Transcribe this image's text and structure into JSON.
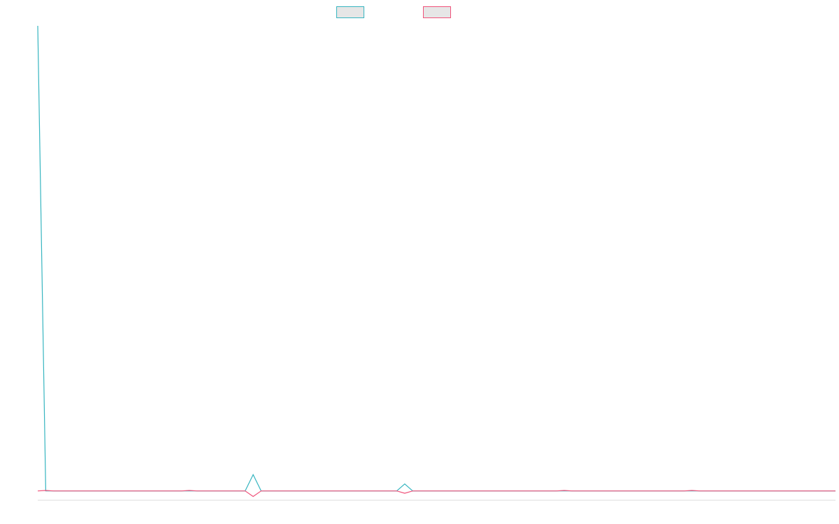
{
  "chart_data": {
    "type": "line",
    "title": "",
    "xlabel": "",
    "ylabel": "",
    "x": [
      0,
      1,
      2,
      3,
      4,
      5,
      6,
      7,
      8,
      9,
      10,
      11,
      12,
      13,
      14,
      15,
      16,
      17,
      18,
      19,
      20,
      21,
      22,
      23,
      24,
      25,
      26,
      27,
      28,
      29,
      30,
      31,
      32,
      33,
      34,
      35,
      36,
      37,
      38,
      39,
      40,
      41,
      42,
      43,
      44,
      45,
      46,
      47,
      48,
      49,
      50,
      51,
      52,
      53,
      54,
      55,
      56,
      57,
      58,
      59,
      60,
      61,
      62,
      63,
      64,
      65,
      66,
      67,
      68,
      69,
      70,
      71,
      72,
      73,
      74,
      75,
      76,
      77,
      78,
      79,
      80,
      81,
      82,
      83,
      84,
      85,
      86,
      87,
      88,
      89,
      90,
      91,
      92,
      93,
      94,
      95,
      96,
      97,
      98,
      99,
      100
    ],
    "xlim": [
      0,
      100
    ],
    "ylim": [
      -2,
      100
    ],
    "grid": false,
    "legend_position": "top-center",
    "series": [
      {
        "name": "",
        "color": "#36b5c0",
        "values": [
          100,
          0,
          0,
          0,
          0,
          0,
          0,
          0,
          0,
          0,
          0,
          0,
          0,
          0,
          0,
          0,
          0,
          0,
          0,
          0,
          0,
          0,
          0,
          0,
          0,
          0,
          0,
          3.5,
          0,
          0,
          0,
          0,
          0,
          0,
          0,
          0,
          0,
          0,
          0,
          0,
          0,
          0,
          0,
          0,
          0,
          0,
          1.5,
          0,
          0,
          0,
          0,
          0,
          0,
          0,
          0,
          0,
          0,
          0,
          0,
          0,
          0,
          0,
          0,
          0,
          0,
          0,
          0,
          0,
          0,
          0,
          0,
          0,
          0,
          0,
          0,
          0,
          0,
          0,
          0,
          0,
          0,
          0,
          0,
          0,
          0,
          0,
          0,
          0,
          0,
          0,
          0,
          0,
          0,
          0,
          0,
          0,
          0,
          0,
          0,
          0,
          0
        ]
      },
      {
        "name": "",
        "color": "#f0527a",
        "values": [
          0,
          0.1,
          0,
          0,
          0,
          0,
          0,
          0,
          0,
          0,
          0,
          0,
          0,
          0,
          0,
          0,
          0,
          0,
          0,
          0.1,
          0,
          0,
          0,
          0,
          0,
          0,
          0,
          -1.2,
          0,
          0,
          0,
          0,
          0,
          0,
          0,
          0,
          0,
          0,
          0,
          0,
          0,
          0,
          0,
          0,
          0,
          0,
          -0.5,
          0,
          0,
          0,
          0,
          0,
          0,
          0,
          0,
          0,
          0,
          0,
          0,
          0,
          0,
          0,
          0,
          0,
          0,
          0,
          0.1,
          0,
          0,
          0,
          0,
          0,
          0,
          0,
          0,
          0,
          0,
          0,
          0,
          0,
          0,
          0,
          0.1,
          0,
          0,
          0,
          0,
          0,
          0,
          0,
          0,
          0,
          0,
          0,
          0,
          0,
          0,
          0,
          0,
          0,
          0
        ]
      }
    ]
  }
}
